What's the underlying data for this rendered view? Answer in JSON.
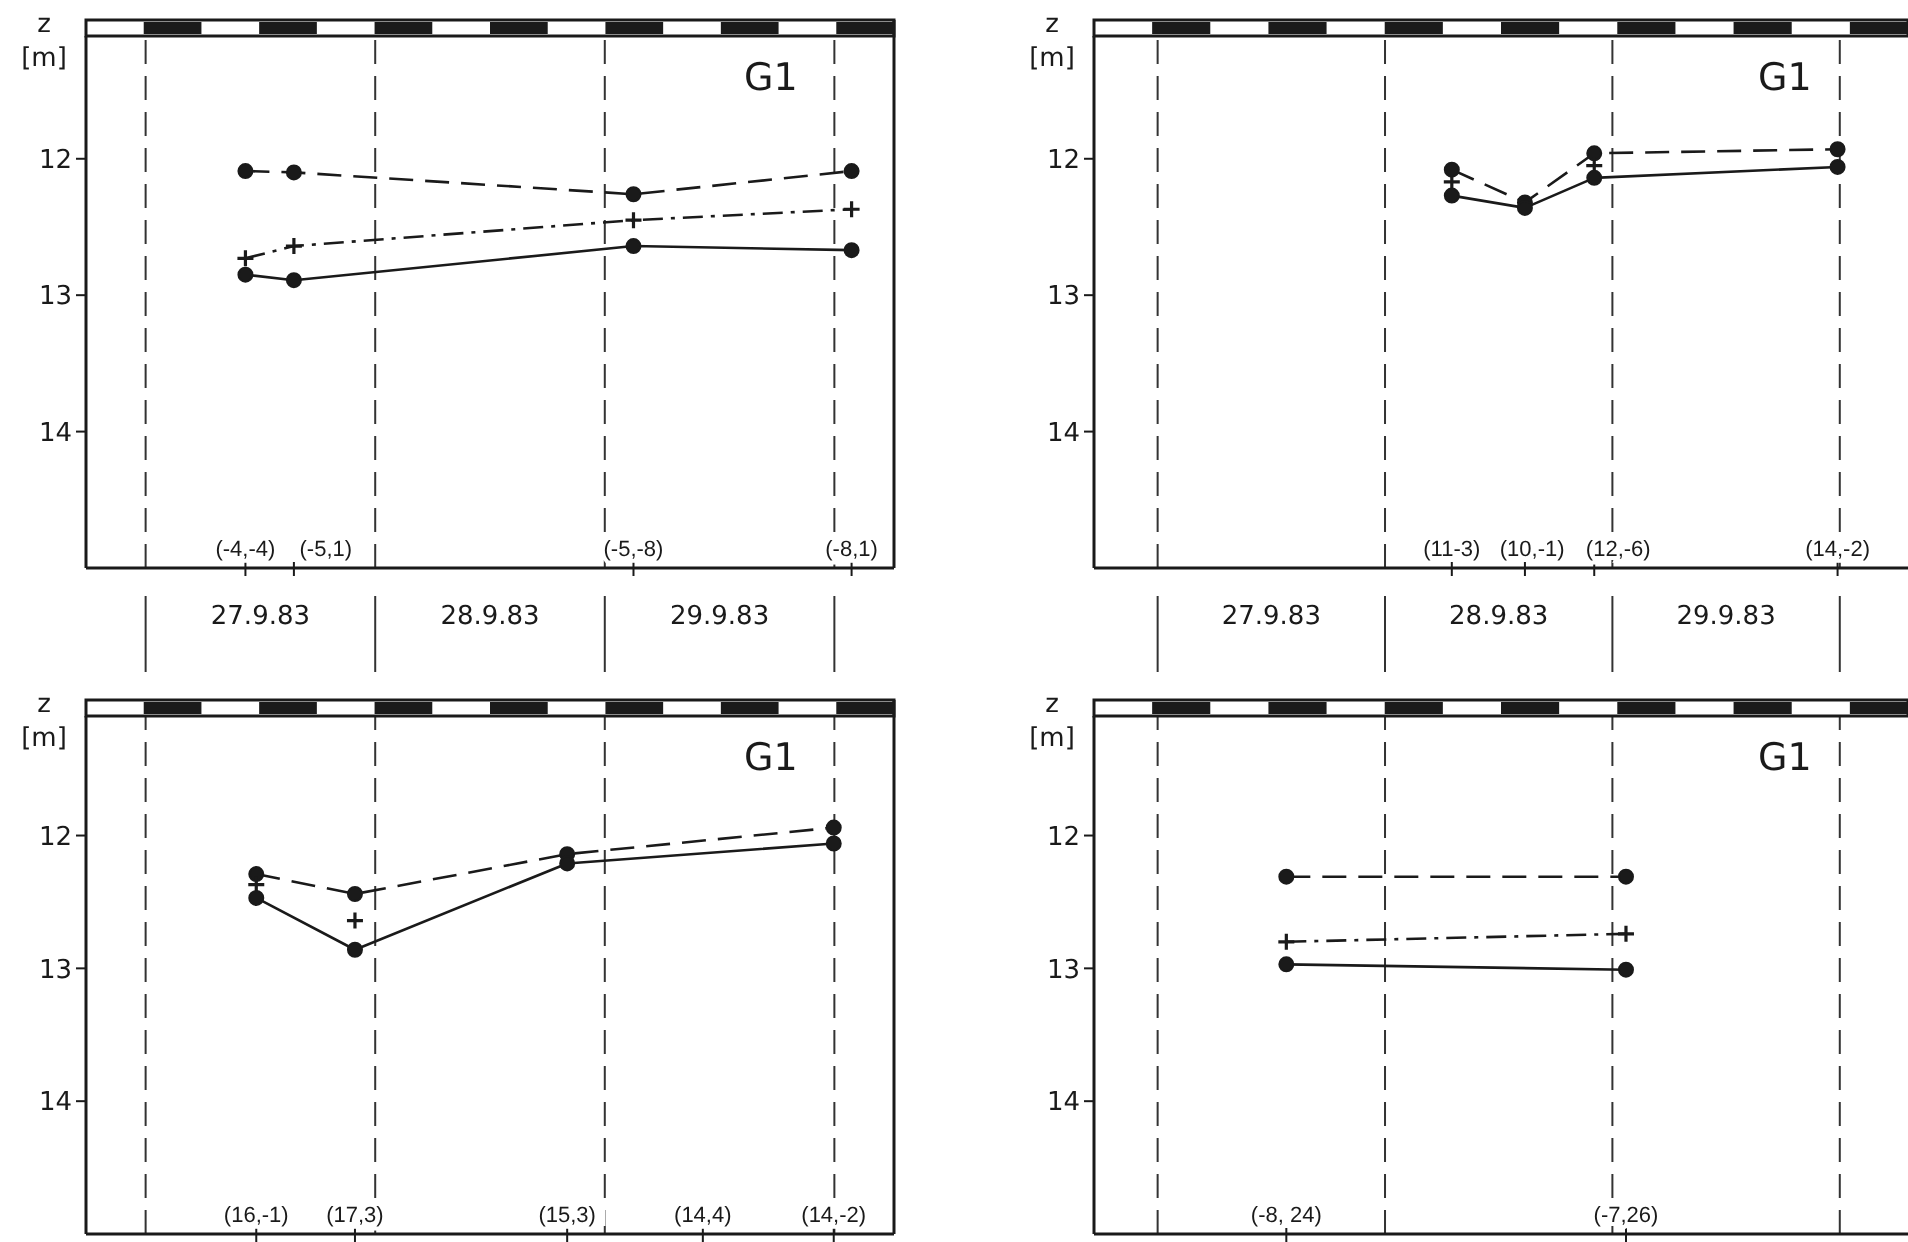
{
  "chart_data": [
    {
      "type": "line",
      "ylabel": "z [m]",
      "x": [
        "1983-09-27T10:26",
        "1983-09-27T15:30",
        "1983-09-29T03:00",
        "1983-09-30T01:48"
      ],
      "xlim": [
        "1983-09-26T17:46",
        "1983-09-30T06:14"
      ],
      "xticks": [
        {
          "value": "1983-09-27T12:00",
          "label": "27.9.83"
        },
        {
          "value": "1983-09-28T12:00",
          "label": "28.9.83"
        },
        {
          "value": "1983-09-29T12:00",
          "label": "29.9.83"
        }
      ],
      "ylim": [
        15.0,
        11.1
      ],
      "yticks": [
        12,
        13,
        14
      ],
      "annotations": [
        "G1",
        "(-4,-4)",
        "(-5,1)",
        "(-5,-8)",
        "(-8,1)"
      ],
      "ref_lines": [
        {
          "axis": "x",
          "value": "1983-09-27",
          "line_style": "dashed"
        },
        {
          "axis": "x",
          "value": "1983-09-28",
          "line_style": "dashed"
        },
        {
          "axis": "x",
          "value": "1983-09-29",
          "line_style": "dashed"
        },
        {
          "axis": "x",
          "value": "1983-09-30",
          "line_style": "dashed"
        }
      ],
      "series": [
        {
          "color": "#1a1a1a",
          "marker": "circle",
          "line_style": "dashed",
          "values": [
            12.09,
            12.1,
            12.26,
            12.09
          ]
        },
        {
          "color": "#1a1a1a",
          "marker": "cross",
          "line_style": "dotted",
          "values": [
            12.73,
            12.64,
            12.45,
            12.37
          ]
        },
        {
          "color": "#1a1a1a",
          "marker": "circle",
          "line_style": "solid",
          "values": [
            12.85,
            12.89,
            12.64,
            12.67
          ]
        }
      ]
    },
    {
      "type": "line",
      "ylabel": "z [m]",
      "x": [
        "1983-09-28T07:03",
        "1983-09-28T14:46",
        "1983-09-28T22:05",
        "1983-09-29T23:46"
      ],
      "xlim": [
        "1983-09-26T17:17",
        "1983-09-30T07:12"
      ],
      "xticks": [
        {
          "value": "1983-09-27T12:00",
          "label": "27.9.83"
        },
        {
          "value": "1983-09-28T12:00",
          "label": "28.9.83"
        },
        {
          "value": "1983-09-29T12:00",
          "label": "29.9.83"
        }
      ],
      "ylim": [
        15.0,
        11.1
      ],
      "yticks": [
        12,
        13,
        14
      ],
      "annotations": [
        "G1",
        "(11-3)",
        "(10,-1)",
        "(12,-6)",
        "(14,-2)"
      ],
      "ref_lines": [
        {
          "axis": "x",
          "value": "1983-09-27",
          "line_style": "dashed"
        },
        {
          "axis": "x",
          "value": "1983-09-28",
          "line_style": "dashed"
        },
        {
          "axis": "x",
          "value": "1983-09-29",
          "line_style": "dashed"
        },
        {
          "axis": "x",
          "value": "1983-09-30",
          "line_style": "dashed"
        }
      ],
      "series": [
        {
          "color": "#1a1a1a",
          "marker": "circle",
          "line_style": "dashed",
          "values": [
            12.08,
            12.32,
            11.96,
            11.93
          ]
        },
        {
          "type": "scatter",
          "color": "#1a1a1a",
          "marker": "cross",
          "values": [
            12.17,
            null,
            12.05,
            null
          ]
        },
        {
          "color": "#1a1a1a",
          "marker": "circle",
          "line_style": "solid",
          "values": [
            12.27,
            12.36,
            12.14,
            12.06
          ]
        }
      ]
    },
    {
      "type": "line",
      "ylabel": "z [m]",
      "tick_labels": "y",
      "x": [
        "1983-09-27T11:34",
        "1983-09-27T21:53",
        "1983-09-28T20:04",
        "1983-09-29T10:15",
        "1983-09-29T23:56"
      ],
      "xlim": [
        "1983-09-26T17:46",
        "1983-09-30T06:14"
      ],
      "xticks": [
        {
          "value": "1983-09-27T12:00",
          "label": null
        },
        {
          "value": "1983-09-28T12:00",
          "label": null
        },
        {
          "value": "1983-09-29T12:00",
          "label": null
        }
      ],
      "ylim": [
        15.0,
        11.1
      ],
      "yticks": [
        12,
        13,
        14
      ],
      "annotations": [
        "G1",
        "(16,-1)",
        "(17,3)",
        "(15,3)",
        "(14,4)",
        "(14,-2)"
      ],
      "ref_lines": [
        {
          "axis": "x",
          "value": "1983-09-27",
          "line_style": "dashed"
        },
        {
          "axis": "x",
          "value": "1983-09-28",
          "line_style": "dashed"
        },
        {
          "axis": "x",
          "value": "1983-09-29",
          "line_style": "dashed"
        },
        {
          "axis": "x",
          "value": "1983-09-30",
          "line_style": "dashed"
        }
      ],
      "series": [
        {
          "color": "#1a1a1a",
          "marker": "circle",
          "line_style": "dashed",
          "values": [
            12.29,
            12.44,
            12.14,
            null,
            11.94
          ]
        },
        {
          "type": "scatter",
          "color": "#1a1a1a",
          "marker": "cross",
          "values": [
            12.37,
            12.64,
            null,
            null,
            null
          ]
        },
        {
          "color": "#1a1a1a",
          "marker": "circle",
          "line_style": "solid",
          "values": [
            12.47,
            12.86,
            12.21,
            null,
            12.06
          ]
        }
      ]
    },
    {
      "type": "line",
      "ylabel": "z [m]",
      "tick_labels": "y",
      "x": [
        "1983-09-27T13:35",
        "1983-09-29T01:26"
      ],
      "xlim": [
        "1983-09-26T17:17",
        "1983-09-30T07:12"
      ],
      "xticks": [
        {
          "value": "1983-09-27T12:00",
          "label": null
        },
        {
          "value": "1983-09-28T12:00",
          "label": null
        },
        {
          "value": "1983-09-29T12:00",
          "label": null
        }
      ],
      "ylim": [
        15.0,
        11.1
      ],
      "yticks": [
        12,
        13,
        14
      ],
      "annotations": [
        "G1",
        "(-8, 24)",
        "(-7,26)"
      ],
      "ref_lines": [
        {
          "axis": "x",
          "value": "1983-09-27",
          "line_style": "dashed"
        },
        {
          "axis": "x",
          "value": "1983-09-28",
          "line_style": "dashed"
        },
        {
          "axis": "x",
          "value": "1983-09-29",
          "line_style": "dashed"
        },
        {
          "axis": "x",
          "value": "1983-09-30",
          "line_style": "dashed"
        }
      ],
      "series": [
        {
          "color": "#1a1a1a",
          "marker": "circle",
          "line_style": "dashed",
          "values": [
            12.31,
            12.31
          ]
        },
        {
          "color": "#1a1a1a",
          "marker": "cross",
          "line_style": "dotted",
          "values": [
            12.8,
            12.74
          ]
        },
        {
          "color": "#1a1a1a",
          "marker": "circle",
          "line_style": "solid",
          "values": [
            12.97,
            13.01
          ]
        }
      ]
    }
  ]
}
